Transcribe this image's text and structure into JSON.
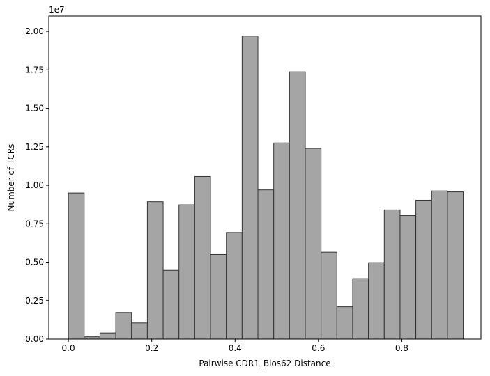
{
  "chart_data": {
    "type": "bar",
    "title": "",
    "xlabel": "Pairwise CDR1_Blos62 Distance",
    "ylabel": "Number of TCRs",
    "y_offset_label": "1e7",
    "xlim": [
      -0.047,
      0.99
    ],
    "ylim": [
      0,
      2.1
    ],
    "bin_start": 0.0,
    "bin_width": 0.0379,
    "bar_color": "#a5a5a5",
    "edge_color": "#333333",
    "values": [
      0.95,
      0.015,
      0.04,
      0.173,
      0.105,
      0.893,
      0.447,
      0.873,
      1.057,
      0.55,
      0.693,
      1.97,
      0.97,
      1.275,
      1.737,
      1.24,
      0.565,
      0.21,
      0.393,
      0.497,
      0.84,
      0.803,
      0.903,
      0.963,
      0.957
    ],
    "x_ticks": [
      {
        "value": 0.0,
        "label": "0.0"
      },
      {
        "value": 0.2,
        "label": "0.2"
      },
      {
        "value": 0.4,
        "label": "0.4"
      },
      {
        "value": 0.6,
        "label": "0.6"
      },
      {
        "value": 0.8,
        "label": "0.8"
      }
    ],
    "y_ticks": [
      {
        "value": 0.0,
        "label": "0.00"
      },
      {
        "value": 0.25,
        "label": "0.25"
      },
      {
        "value": 0.5,
        "label": "0.50"
      },
      {
        "value": 0.75,
        "label": "0.75"
      },
      {
        "value": 1.0,
        "label": "1.00"
      },
      {
        "value": 1.25,
        "label": "1.25"
      },
      {
        "value": 1.5,
        "label": "1.50"
      },
      {
        "value": 1.75,
        "label": "1.75"
      },
      {
        "value": 2.0,
        "label": "2.00"
      }
    ],
    "grid": false,
    "legend": "none"
  }
}
